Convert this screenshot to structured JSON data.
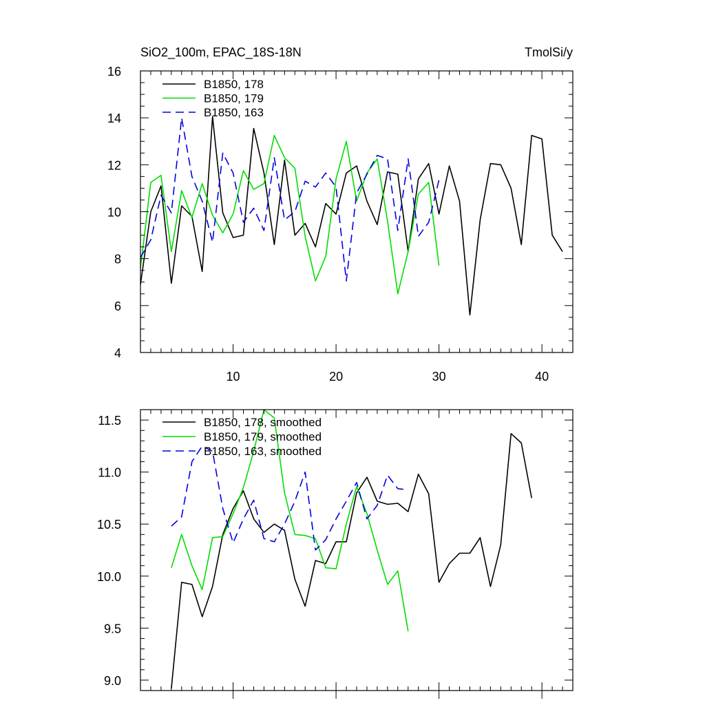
{
  "chart_data": [
    {
      "type": "line",
      "title_left": "SiO2_100m, EPAC_18S-18N",
      "title_right": "TmolSi/y",
      "xlim": [
        1,
        43
      ],
      "ylim": [
        4,
        16
      ],
      "x_ticks": [
        10,
        20,
        30,
        40
      ],
      "x_tick_labels": [
        "10",
        "20",
        "30",
        "40"
      ],
      "y_ticks": [
        4,
        6,
        8,
        10,
        12,
        14,
        16
      ],
      "y_tick_labels": [
        "4",
        "6",
        "8",
        "10",
        "12",
        "14",
        "16"
      ],
      "legend_position": "top-left",
      "series": [
        {
          "name": "B1850, 178",
          "color": "#000000",
          "dash": "solid",
          "x": [
            1,
            2,
            3,
            4,
            5,
            6,
            7,
            8,
            9,
            10,
            11,
            12,
            13,
            14,
            15,
            16,
            17,
            18,
            19,
            20,
            21,
            22,
            23,
            24,
            25,
            26,
            27,
            28,
            29,
            30,
            31,
            32,
            33,
            34,
            35,
            36,
            37,
            38,
            39,
            40,
            41,
            42
          ],
          "values": [
            6.9,
            10.0,
            11.1,
            6.95,
            10.25,
            9.8,
            7.45,
            14.05,
            9.95,
            8.9,
            9.0,
            13.55,
            11.65,
            8.6,
            12.2,
            9.0,
            9.5,
            8.5,
            10.35,
            9.9,
            11.65,
            11.95,
            10.45,
            9.45,
            11.7,
            11.6,
            8.3,
            11.4,
            12.05,
            9.9,
            11.95,
            10.45,
            5.6,
            9.65,
            12.05,
            12.0,
            11.0,
            8.6,
            13.25,
            13.1,
            9.0,
            8.3
          ]
        },
        {
          "name": "B1850, 179",
          "color": "#00dd00",
          "dash": "solid",
          "x": [
            1,
            2,
            3,
            4,
            5,
            6,
            7,
            8,
            9,
            10,
            11,
            12,
            13,
            14,
            15,
            16,
            17,
            18,
            19,
            20,
            21,
            22,
            23,
            24,
            25,
            26,
            27,
            28,
            29,
            30
          ],
          "values": [
            7.6,
            11.25,
            11.55,
            8.3,
            10.9,
            9.75,
            11.2,
            9.85,
            9.1,
            9.9,
            11.75,
            10.95,
            11.2,
            13.25,
            12.3,
            11.85,
            8.95,
            7.05,
            8.1,
            11.4,
            13.0,
            10.45,
            11.65,
            12.25,
            9.6,
            6.5,
            8.3,
            10.75,
            11.25,
            7.7
          ]
        },
        {
          "name": "B1850, 163",
          "color": "#0000dd",
          "dash": "dashed",
          "x": [
            1,
            2,
            3,
            4,
            5,
            6,
            7,
            8,
            9,
            10,
            11,
            12,
            13,
            14,
            15,
            16,
            17,
            18,
            19,
            20,
            21,
            22,
            23,
            24,
            25,
            26,
            27,
            28,
            29,
            30
          ],
          "values": [
            8.05,
            8.8,
            10.7,
            9.95,
            14.0,
            11.5,
            10.45,
            8.7,
            12.5,
            11.65,
            9.55,
            10.15,
            9.2,
            12.3,
            9.65,
            10.0,
            11.3,
            11.05,
            11.65,
            11.05,
            7.05,
            10.8,
            11.6,
            12.4,
            12.25,
            9.2,
            12.25,
            8.95,
            9.55,
            11.35
          ]
        }
      ]
    },
    {
      "type": "line",
      "xlim": [
        1,
        43
      ],
      "ylim": [
        8.9,
        11.6
      ],
      "x_ticks": [
        10,
        20,
        30,
        40
      ],
      "y_ticks": [
        9.0,
        9.5,
        10.0,
        10.5,
        11.0,
        11.5
      ],
      "y_tick_labels": [
        "9.0",
        "9.5",
        "10.0",
        "10.5",
        "11.0",
        "11.5"
      ],
      "legend_position": "top-left",
      "series": [
        {
          "name": "B1850, 178, smoothed",
          "color": "#000000",
          "dash": "solid",
          "x": [
            4,
            5,
            6,
            7,
            8,
            9,
            10,
            11,
            12,
            13,
            14,
            15,
            16,
            17,
            18,
            19,
            20,
            21,
            22,
            23,
            24,
            25,
            26,
            27,
            28,
            29,
            30,
            31,
            32,
            33,
            34,
            35,
            36,
            37,
            38,
            39
          ],
          "values": [
            8.92,
            9.94,
            9.92,
            9.61,
            9.9,
            10.4,
            10.65,
            10.82,
            10.55,
            10.42,
            10.5,
            10.44,
            9.97,
            9.71,
            10.15,
            10.12,
            10.33,
            10.33,
            10.8,
            10.95,
            10.72,
            10.69,
            10.7,
            10.62,
            10.98,
            10.79,
            9.94,
            10.12,
            10.22,
            10.22,
            10.37,
            9.9,
            10.3,
            11.37,
            11.28,
            10.75
          ]
        },
        {
          "name": "B1850, 179, smoothed",
          "color": "#00dd00",
          "dash": "solid",
          "x": [
            4,
            5,
            6,
            7,
            8,
            9,
            10,
            11,
            12,
            13,
            14,
            15,
            16,
            17,
            18,
            19,
            20,
            21,
            22,
            23,
            24,
            25,
            26,
            27
          ],
          "values": [
            10.08,
            10.4,
            10.1,
            9.87,
            10.37,
            10.38,
            10.6,
            10.85,
            11.2,
            11.6,
            11.52,
            10.8,
            10.4,
            10.39,
            10.36,
            10.08,
            10.07,
            10.5,
            10.86,
            10.6,
            10.25,
            9.92,
            10.05,
            9.47
          ]
        },
        {
          "name": "B1850, 163, smoothed",
          "color": "#0000dd",
          "dash": "dashed",
          "x": [
            4,
            5,
            6,
            7,
            8,
            9,
            10,
            11,
            12,
            13,
            14,
            15,
            16,
            17,
            18,
            19,
            20,
            21,
            22,
            23,
            24,
            25,
            26,
            27
          ],
          "values": [
            10.48,
            10.57,
            11.1,
            11.25,
            11.2,
            10.65,
            10.32,
            10.55,
            10.73,
            10.36,
            10.33,
            10.5,
            10.72,
            11.0,
            10.25,
            10.35,
            10.55,
            10.72,
            10.9,
            10.55,
            10.68,
            10.97,
            10.84,
            10.83
          ]
        }
      ]
    }
  ]
}
